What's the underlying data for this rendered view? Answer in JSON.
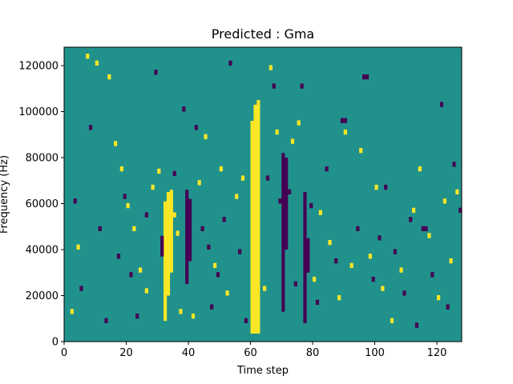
{
  "chart_data": {
    "type": "heatmap",
    "title": "Predicted : Gma",
    "xlabel": "Time step",
    "ylabel": "Frequency (Hz)",
    "xlim": [
      0,
      128
    ],
    "ylim": [
      0,
      128000
    ],
    "x_ticks": [
      0,
      20,
      40,
      60,
      80,
      100,
      120
    ],
    "x_tick_labels": [
      "0",
      "20",
      "40",
      "60",
      "80",
      "100",
      "120"
    ],
    "y_ticks": [
      0,
      20000,
      40000,
      60000,
      80000,
      100000,
      120000
    ],
    "y_tick_labels": [
      "0",
      "20000",
      "40000",
      "60000",
      "80000",
      "100000",
      "120000"
    ],
    "grid": false,
    "colors": {
      "background": "#21918c",
      "high": "#fde725",
      "low": "#440154"
    },
    "value_levels": {
      "low": -1,
      "background": 0,
      "high": 1
    },
    "columns": [
      {
        "t": 60,
        "value": 1,
        "bands": [
          [
            3500,
            96000
          ]
        ]
      },
      {
        "t": 61,
        "value": 1,
        "bands": [
          [
            3500,
            103000
          ]
        ]
      },
      {
        "t": 62,
        "value": 1,
        "bands": [
          [
            3500,
            105000
          ]
        ]
      },
      {
        "t": 32,
        "value": 1,
        "bands": [
          [
            9000,
            61000
          ]
        ]
      },
      {
        "t": 33,
        "value": 1,
        "bands": [
          [
            20000,
            65000
          ]
        ]
      },
      {
        "t": 34,
        "value": 1,
        "bands": [
          [
            30000,
            66000
          ]
        ]
      },
      {
        "t": 70,
        "value": -1,
        "bands": [
          [
            13000,
            82000
          ]
        ]
      },
      {
        "t": 71,
        "value": -1,
        "bands": [
          [
            40000,
            80000
          ]
        ]
      },
      {
        "t": 39,
        "value": -1,
        "bands": [
          [
            25000,
            66000
          ]
        ]
      },
      {
        "t": 40,
        "value": -1,
        "bands": [
          [
            35000,
            62000
          ]
        ]
      },
      {
        "t": 77,
        "value": -1,
        "bands": [
          [
            8000,
            65000
          ]
        ]
      },
      {
        "t": 78,
        "value": -1,
        "bands": [
          [
            30000,
            45000
          ]
        ]
      },
      {
        "t": 31,
        "value": -1,
        "bands": [
          [
            37000,
            46000
          ]
        ]
      }
    ],
    "cells": [
      {
        "t": 7,
        "f": 123000,
        "v": 1
      },
      {
        "t": 10,
        "f": 120000,
        "v": 1
      },
      {
        "t": 14,
        "f": 114000,
        "v": 1
      },
      {
        "t": 16,
        "f": 85000,
        "v": 1
      },
      {
        "t": 18,
        "f": 74000,
        "v": 1
      },
      {
        "t": 20,
        "f": 58000,
        "v": 1
      },
      {
        "t": 22,
        "f": 48000,
        "v": 1
      },
      {
        "t": 24,
        "f": 30000,
        "v": 1
      },
      {
        "t": 26,
        "f": 21000,
        "v": 1
      },
      {
        "t": 28,
        "f": 66000,
        "v": 1
      },
      {
        "t": 30,
        "f": 73000,
        "v": 1
      },
      {
        "t": 35,
        "f": 54000,
        "v": 1
      },
      {
        "t": 36,
        "f": 46000,
        "v": 1
      },
      {
        "t": 37,
        "f": 12000,
        "v": 1
      },
      {
        "t": 41,
        "f": 10000,
        "v": 1
      },
      {
        "t": 43,
        "f": 68000,
        "v": 1
      },
      {
        "t": 45,
        "f": 88000,
        "v": 1
      },
      {
        "t": 48,
        "f": 32000,
        "v": 1
      },
      {
        "t": 50,
        "f": 74000,
        "v": 1
      },
      {
        "t": 52,
        "f": 20000,
        "v": 1
      },
      {
        "t": 55,
        "f": 62000,
        "v": 1
      },
      {
        "t": 57,
        "f": 70000,
        "v": 1
      },
      {
        "t": 64,
        "f": 22000,
        "v": 1
      },
      {
        "t": 66,
        "f": 118000,
        "v": 1
      },
      {
        "t": 68,
        "f": 90000,
        "v": 1
      },
      {
        "t": 73,
        "f": 86000,
        "v": 1
      },
      {
        "t": 75,
        "f": 94000,
        "v": 1
      },
      {
        "t": 80,
        "f": 26000,
        "v": 1
      },
      {
        "t": 82,
        "f": 55000,
        "v": 1
      },
      {
        "t": 85,
        "f": 42000,
        "v": 1
      },
      {
        "t": 88,
        "f": 18000,
        "v": 1
      },
      {
        "t": 90,
        "f": 90000,
        "v": 1
      },
      {
        "t": 92,
        "f": 32000,
        "v": 1
      },
      {
        "t": 95,
        "f": 82000,
        "v": 1
      },
      {
        "t": 98,
        "f": 36000,
        "v": 1
      },
      {
        "t": 100,
        "f": 66000,
        "v": 1
      },
      {
        "t": 102,
        "f": 22000,
        "v": 1
      },
      {
        "t": 105,
        "f": 8000,
        "v": 1
      },
      {
        "t": 108,
        "f": 30000,
        "v": 1
      },
      {
        "t": 112,
        "f": 56000,
        "v": 1
      },
      {
        "t": 114,
        "f": 74000,
        "v": 1
      },
      {
        "t": 117,
        "f": 45000,
        "v": 1
      },
      {
        "t": 120,
        "f": 18000,
        "v": 1
      },
      {
        "t": 122,
        "f": 60000,
        "v": 1
      },
      {
        "t": 124,
        "f": 34000,
        "v": 1
      },
      {
        "t": 126,
        "f": 64000,
        "v": 1
      },
      {
        "t": 4,
        "f": 40000,
        "v": 1
      },
      {
        "t": 2,
        "f": 12000,
        "v": 1
      },
      {
        "t": 3,
        "f": 60000,
        "v": -1
      },
      {
        "t": 5,
        "f": 22000,
        "v": -1
      },
      {
        "t": 8,
        "f": 92000,
        "v": -1
      },
      {
        "t": 11,
        "f": 48000,
        "v": -1
      },
      {
        "t": 13,
        "f": 8000,
        "v": -1
      },
      {
        "t": 17,
        "f": 36000,
        "v": -1
      },
      {
        "t": 19,
        "f": 62000,
        "v": -1
      },
      {
        "t": 21,
        "f": 28000,
        "v": -1
      },
      {
        "t": 23,
        "f": 10000,
        "v": -1
      },
      {
        "t": 26,
        "f": 54000,
        "v": -1
      },
      {
        "t": 29,
        "f": 116000,
        "v": -1
      },
      {
        "t": 35,
        "f": 72000,
        "v": -1
      },
      {
        "t": 38,
        "f": 100000,
        "v": -1
      },
      {
        "t": 42,
        "f": 92000,
        "v": -1
      },
      {
        "t": 44,
        "f": 48000,
        "v": -1
      },
      {
        "t": 46,
        "f": 40000,
        "v": -1
      },
      {
        "t": 47,
        "f": 14000,
        "v": -1
      },
      {
        "t": 49,
        "f": 28000,
        "v": -1
      },
      {
        "t": 51,
        "f": 52000,
        "v": -1
      },
      {
        "t": 53,
        "f": 120000,
        "v": -1
      },
      {
        "t": 56,
        "f": 38000,
        "v": -1
      },
      {
        "t": 58,
        "f": 8000,
        "v": -1
      },
      {
        "t": 65,
        "f": 70000,
        "v": -1
      },
      {
        "t": 67,
        "f": 110000,
        "v": -1
      },
      {
        "t": 69,
        "f": 60000,
        "v": -1
      },
      {
        "t": 72,
        "f": 64000,
        "v": -1
      },
      {
        "t": 74,
        "f": 24000,
        "v": -1
      },
      {
        "t": 76,
        "f": 110000,
        "v": -1
      },
      {
        "t": 79,
        "f": 58000,
        "v": -1
      },
      {
        "t": 81,
        "f": 16000,
        "v": -1
      },
      {
        "t": 84,
        "f": 74000,
        "v": -1
      },
      {
        "t": 87,
        "f": 34000,
        "v": -1
      },
      {
        "t": 89,
        "f": 95000,
        "v": -1
      },
      {
        "t": 90,
        "f": 95000,
        "v": -1
      },
      {
        "t": 94,
        "f": 48000,
        "v": -1
      },
      {
        "t": 96,
        "f": 114000,
        "v": -1
      },
      {
        "t": 97,
        "f": 114000,
        "v": -1
      },
      {
        "t": 99,
        "f": 26000,
        "v": -1
      },
      {
        "t": 101,
        "f": 44000,
        "v": -1
      },
      {
        "t": 103,
        "f": 66000,
        "v": -1
      },
      {
        "t": 106,
        "f": 38000,
        "v": -1
      },
      {
        "t": 109,
        "f": 20000,
        "v": -1
      },
      {
        "t": 111,
        "f": 52000,
        "v": -1
      },
      {
        "t": 113,
        "f": 6000,
        "v": -1
      },
      {
        "t": 115,
        "f": 48000,
        "v": -1
      },
      {
        "t": 116,
        "f": 48000,
        "v": -1
      },
      {
        "t": 118,
        "f": 28000,
        "v": -1
      },
      {
        "t": 121,
        "f": 102000,
        "v": -1
      },
      {
        "t": 123,
        "f": 14000,
        "v": -1
      },
      {
        "t": 125,
        "f": 76000,
        "v": -1
      },
      {
        "t": 127,
        "f": 56000,
        "v": -1
      }
    ]
  }
}
